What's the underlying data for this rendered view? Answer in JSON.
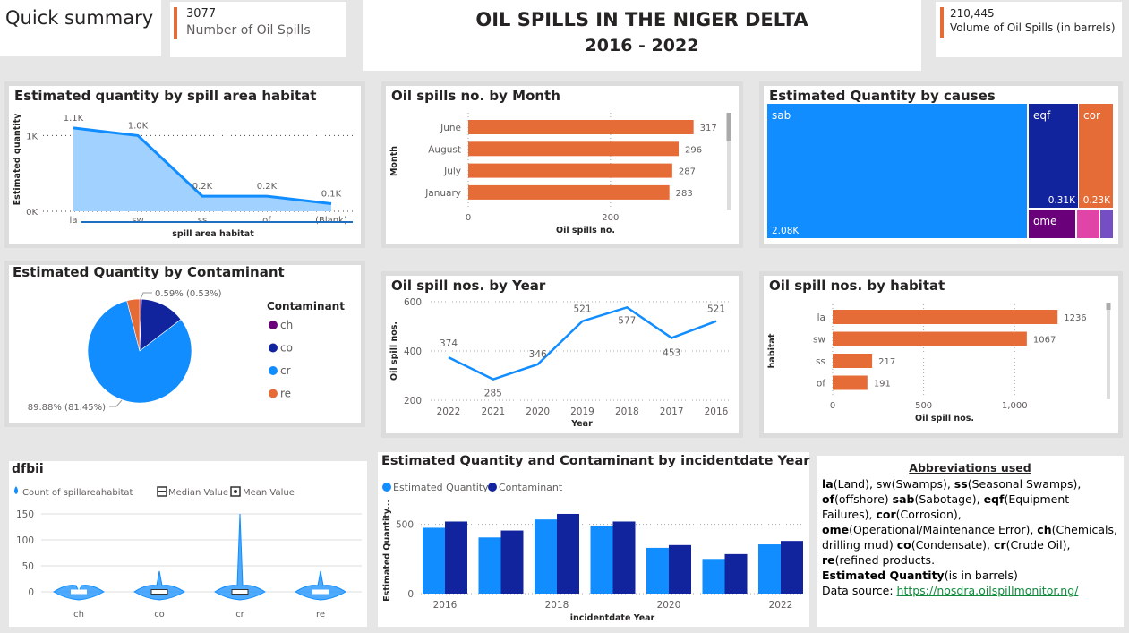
{
  "header": {
    "quick_summary": "Quick summary",
    "spills_count": "3077",
    "spills_label": "Number of Oil Spills",
    "title": "OIL SPILLS IN THE NIGER DELTA",
    "subtitle": "2016 - 2022",
    "volume_value": "210,445",
    "volume_label": "Volume of Oil Spills (in barrels)",
    "accent": "#e66c37"
  },
  "chart_data": [
    {
      "id": "habitat_area",
      "type": "area",
      "title": "Estimated quantity by spill area habitat",
      "xlabel": "spill area habitat",
      "ylabel": "Estimated quantity",
      "categories": [
        "la",
        "sw",
        "ss",
        "of",
        "(Blank)"
      ],
      "values": [
        1100,
        1000,
        200,
        200,
        100
      ],
      "data_labels": [
        "1.1K",
        "1.0K",
        "0.2K",
        "0.2K",
        "0.1K"
      ],
      "yticks": [
        "0K",
        "1K"
      ],
      "ylim": [
        0,
        1300
      ],
      "color": "#118dff"
    },
    {
      "id": "month_bar",
      "type": "bar",
      "title": "Oil spills no. by Month",
      "xlabel": "Oil spills no.",
      "ylabel": "Month",
      "categories": [
        "June",
        "August",
        "July",
        "January"
      ],
      "values": [
        317,
        296,
        287,
        283
      ],
      "xticks": [
        "0",
        "200"
      ],
      "xlim": [
        0,
        330
      ],
      "color": "#e66c37"
    },
    {
      "id": "causes_treemap",
      "type": "treemap",
      "title": "Estimated Quantity by causes",
      "items": [
        {
          "label": "sab",
          "value_label": "2.08K",
          "color": "#118dff"
        },
        {
          "label": "eqf",
          "value_label": "0.31K",
          "color": "#12239e"
        },
        {
          "label": "cor",
          "value_label": "0.23K",
          "color": "#e66c37"
        },
        {
          "label": "ome",
          "value_label": "",
          "color": "#6b007b"
        },
        {
          "label": "",
          "value_label": "",
          "color": "#e044a7"
        },
        {
          "label": "",
          "value_label": "",
          "color": "#744ec2"
        }
      ]
    },
    {
      "id": "contaminant_pie",
      "type": "pie",
      "title": "Estimated Quantity by Contaminant",
      "legend_title": "Contaminant",
      "slices": [
        {
          "name": "ch",
          "pct": 0.59,
          "color": "#6b007b"
        },
        {
          "name": "co",
          "pct": 14.0,
          "color": "#12239e"
        },
        {
          "name": "cr",
          "pct": 81.45,
          "color": "#118dff"
        },
        {
          "name": "re",
          "pct": 3.96,
          "color": "#e66c37"
        }
      ],
      "annotations": [
        "0.59% (0.53%)",
        "89.88% (81.45%)"
      ]
    },
    {
      "id": "year_line",
      "type": "line",
      "title": "Oil spill nos. by Year",
      "xlabel": "Year",
      "ylabel": "Oil spill nos.",
      "categories": [
        "2022",
        "2021",
        "2020",
        "2019",
        "2018",
        "2017",
        "2016"
      ],
      "values": [
        374,
        285,
        346,
        521,
        577,
        453,
        521
      ],
      "yticks": [
        200,
        400,
        600
      ],
      "ylim": [
        200,
        600
      ],
      "color": "#118dff"
    },
    {
      "id": "habitat_bar",
      "type": "bar",
      "title": "Oil spill nos. by habitat",
      "xlabel": "Oil spill nos.",
      "ylabel": "habitat",
      "categories": [
        "la",
        "sw",
        "ss",
        "of"
      ],
      "values": [
        1236,
        1067,
        217,
        191
      ],
      "xticks": [
        "0",
        "500",
        "1,000"
      ],
      "xlim": [
        0,
        1230
      ],
      "color": "#e66c37"
    },
    {
      "id": "violin",
      "type": "violin",
      "title": "dfbii",
      "legend": [
        "Count of spillareahabitat",
        "Median Value",
        "Mean Value"
      ],
      "categories": [
        "ch",
        "co",
        "cr",
        "re"
      ],
      "spike_max": [
        0,
        40,
        150,
        40
      ],
      "yticks": [
        0,
        50,
        100,
        150
      ],
      "ylim": [
        0,
        150
      ],
      "color": "#118dff"
    },
    {
      "id": "year_grouped",
      "type": "bar",
      "title": "Estimated Quantity and Contaminant by incidentdate Year",
      "xlabel": "incidentdate Year",
      "ylabel": "Estimated Quantity...",
      "categories": [
        "2016",
        "2017",
        "2018",
        "2019",
        "2020",
        "2021",
        "2022"
      ],
      "tick_labels": [
        "2016",
        "",
        "2018",
        "",
        "2020",
        "",
        "2022"
      ],
      "series": [
        {
          "name": "Estimated Quantity",
          "values": [
            475,
            405,
            535,
            485,
            330,
            250,
            355
          ],
          "color": "#118dff"
        },
        {
          "name": "Contaminant",
          "values": [
            520,
            455,
            575,
            520,
            350,
            285,
            380
          ],
          "color": "#12239e"
        }
      ],
      "yticks": [
        0,
        500
      ],
      "ylim": [
        0,
        620
      ]
    }
  ],
  "abbreviations": {
    "title": "Abbreviations used",
    "line1_pre": "",
    "items": [
      {
        "k": "la",
        "v": "(Land), sw(Swamps), "
      },
      {
        "k": "ss",
        "v": "(Seasonal Swamps), "
      },
      {
        "k": "of",
        "v": "(offshore) "
      },
      {
        "k": "sab",
        "v": "(Sabotage), "
      },
      {
        "k": "eqf",
        "v": "(Equipment Failures), "
      },
      {
        "k": "cor",
        "v": "(Corrosion), "
      },
      {
        "k": "ome",
        "v": "(Operational/Maintenance Error), "
      },
      {
        "k": "ch",
        "v": "(Chemicals, drilling mud) "
      },
      {
        "k": "co",
        "v": "(Condensate), "
      },
      {
        "k": "cr",
        "v": "(Crude Oil), "
      },
      {
        "k": "re",
        "v": "(refined products."
      }
    ],
    "est_key": "Estimated Quantity",
    "est_val": "(is in barrels)",
    "source_label": "Data source: ",
    "source_link": "https://nosdra.oilspillmonitor.ng/"
  }
}
